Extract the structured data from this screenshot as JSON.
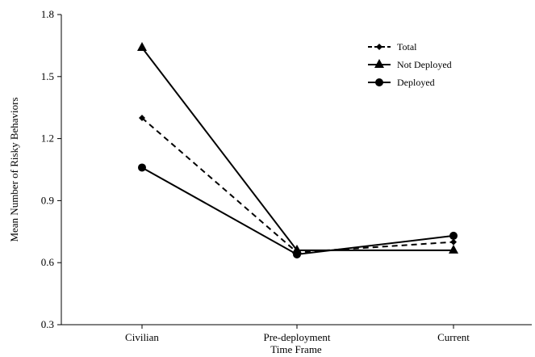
{
  "chart_data": {
    "type": "line",
    "xlabel": "Time Frame",
    "ylabel": "Mean Number of Risky Behaviors",
    "categories": [
      "Civilian",
      "Pre-deployment",
      "Current"
    ],
    "ylim": [
      0.3,
      1.8
    ],
    "yticks": [
      0.3,
      0.6,
      0.9,
      1.2,
      1.5,
      1.8
    ],
    "ytick_labels": [
      "0.3",
      "0.6",
      "0.9",
      "1.2",
      "1.5",
      "1.8"
    ],
    "grid": false,
    "legend_position": "top-right",
    "series": [
      {
        "name": "Total",
        "values": [
          1.3,
          0.65,
          0.7
        ],
        "line_style": "dashed",
        "marker": "diamond",
        "color": "#000000"
      },
      {
        "name": "Not Deployed",
        "values": [
          1.64,
          0.66,
          0.66
        ],
        "line_style": "solid",
        "marker": "triangle",
        "color": "#000000"
      },
      {
        "name": "Deployed",
        "values": [
          1.06,
          0.64,
          0.73
        ],
        "line_style": "solid",
        "marker": "circle",
        "color": "#000000"
      }
    ]
  }
}
